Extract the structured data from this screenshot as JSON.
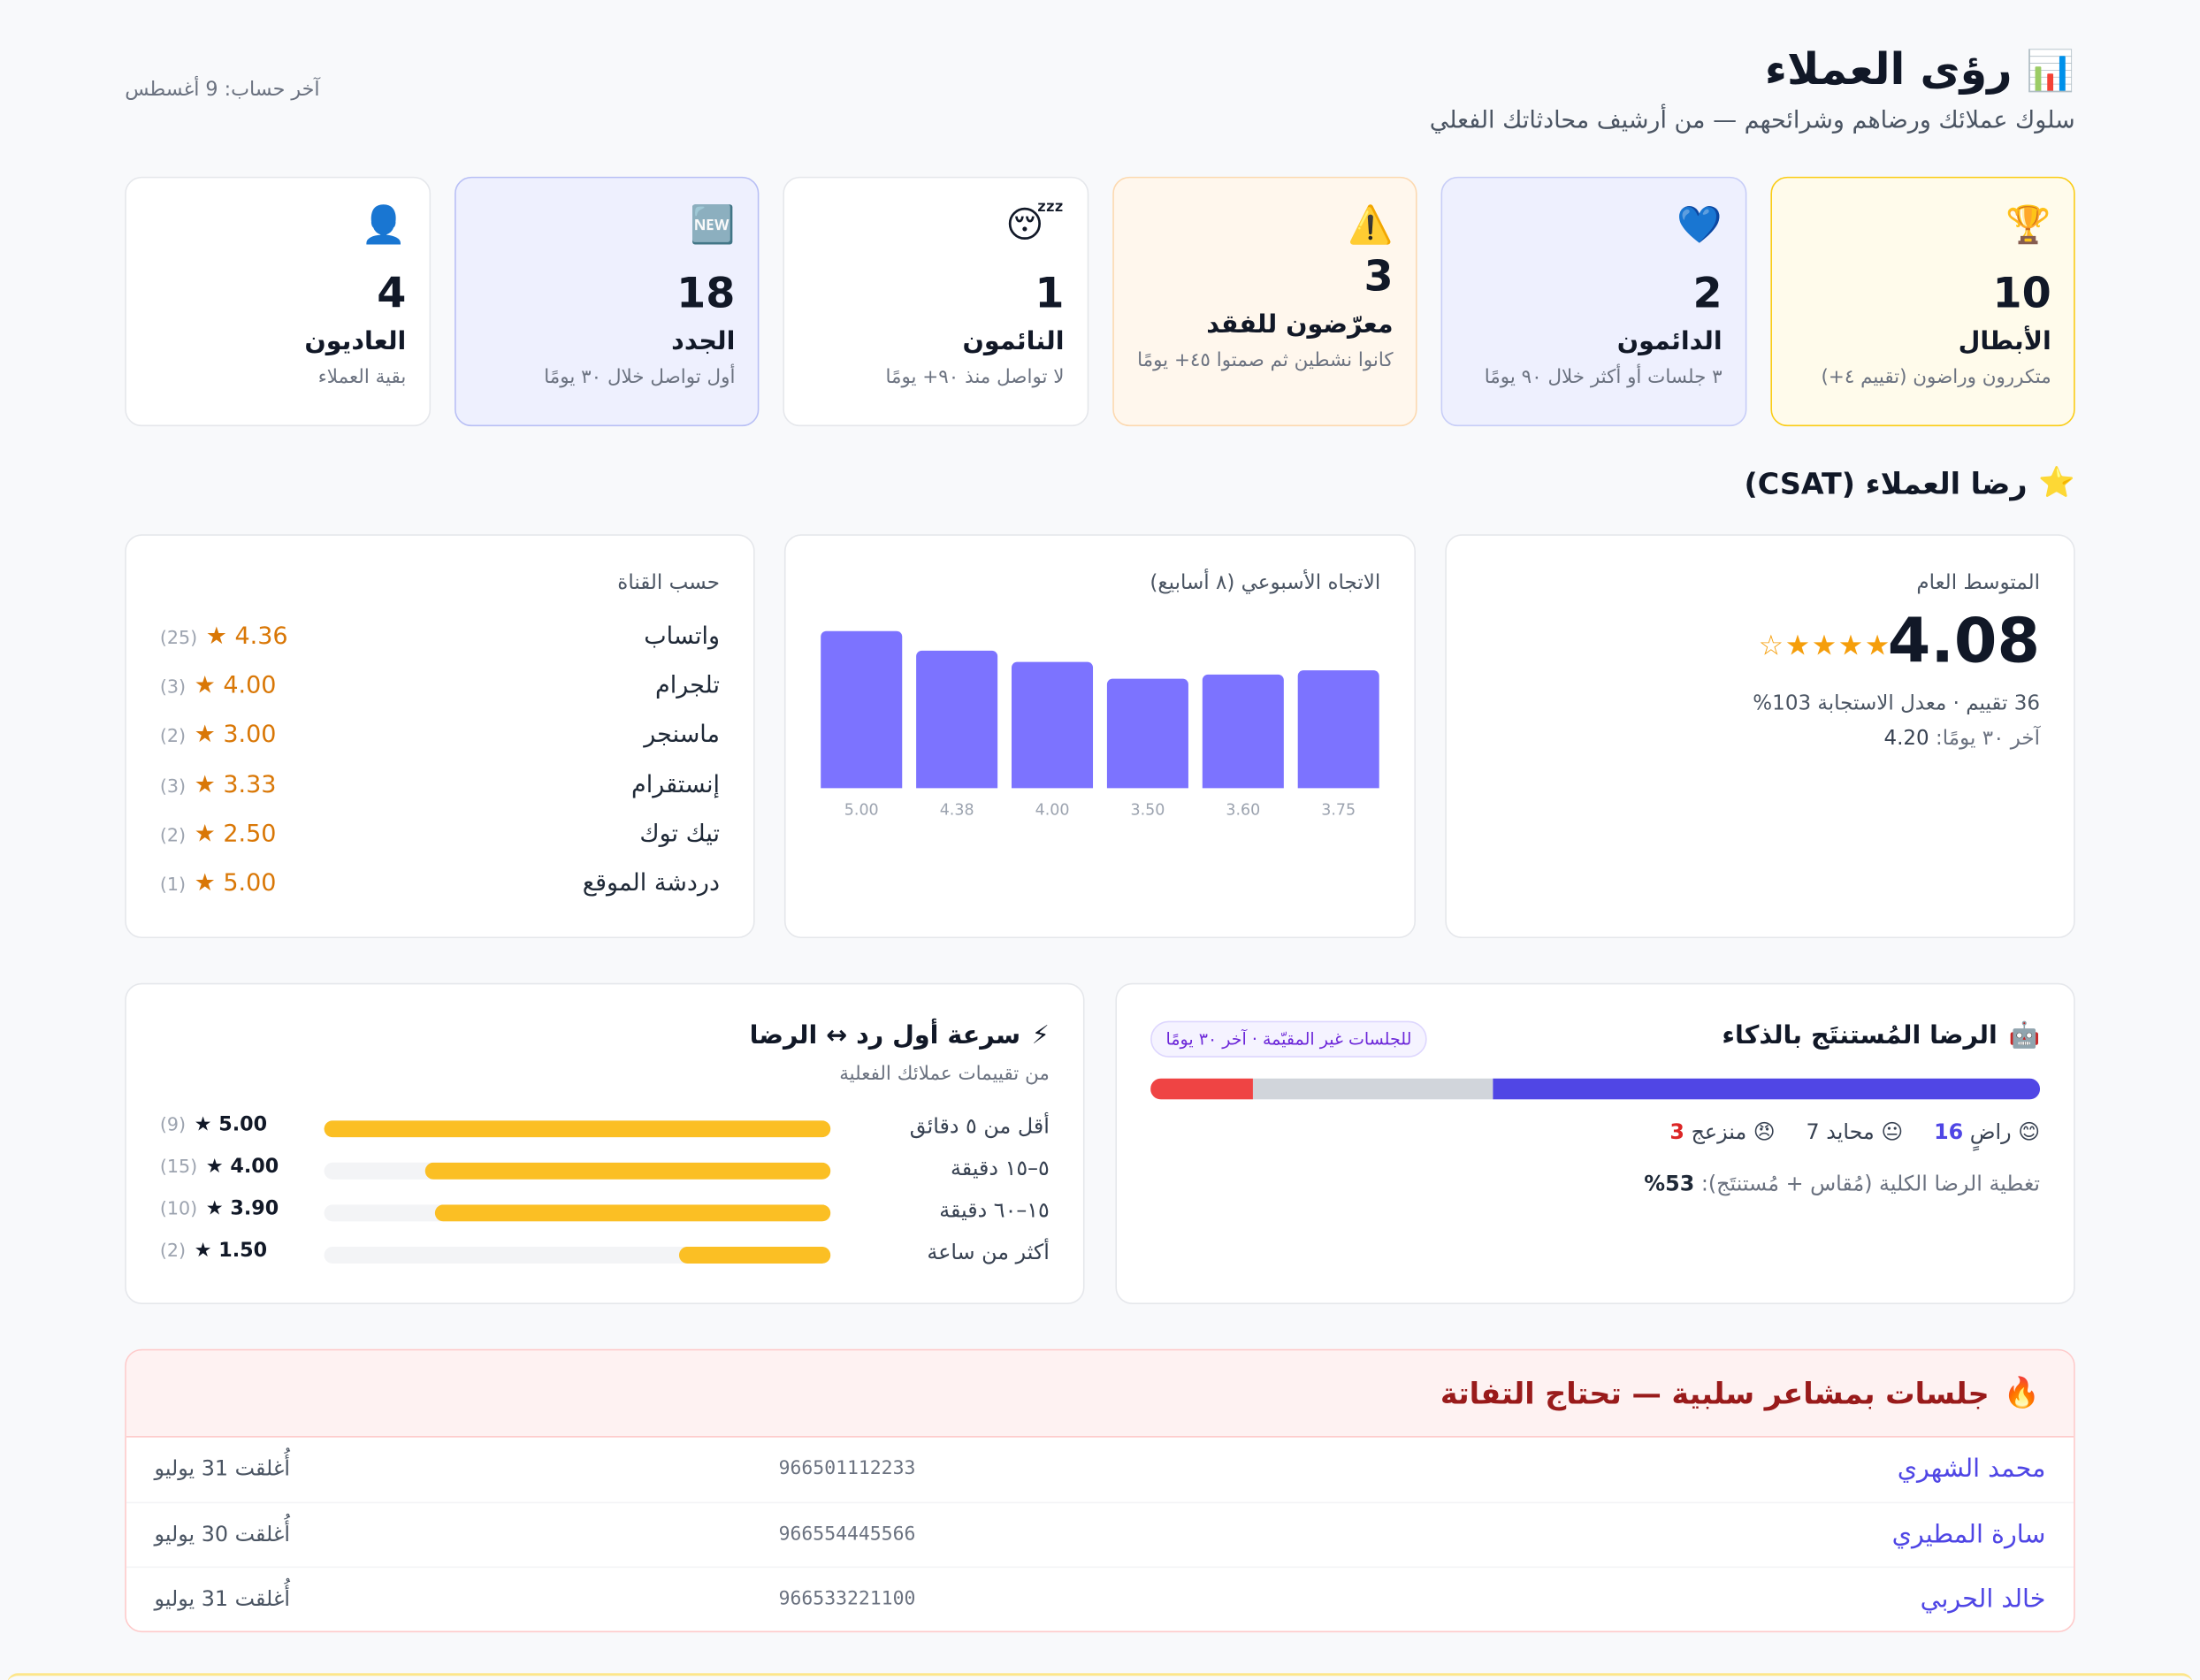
{
  "header": {
    "title": "رؤى العملاء",
    "title_icon": "chart-icon",
    "subtitle": "سلوك عملائك ورضاهم وشرائحهم — من أرشيف محادثاتك الفعلي",
    "last_calc": "آخر حساب: 9 أغسطس"
  },
  "segments": [
    {
      "icon": "🏆",
      "count": "10",
      "name": "الأبطال",
      "desc": "متكررون وراضون (تقييم ٤+)"
    },
    {
      "icon": "💙",
      "count": "2",
      "name": "الدائمون",
      "desc": "٣ جلسات أو أكثر خلال ٩٠ يومًا"
    },
    {
      "icon": "⚠️",
      "count": "3",
      "name": "معرّضون للفقد",
      "desc": "كانوا نشطين ثم صمتوا ٤٥+ يومًا"
    },
    {
      "icon": "😴",
      "count": "1",
      "name": "النائمون",
      "desc": "لا تواصل منذ ٩٠+ يومًا"
    },
    {
      "icon": "🆕",
      "count": "18",
      "name": "الجدد",
      "desc": "أول تواصل خلال ٣٠ يومًا"
    },
    {
      "icon": "👤",
      "count": "4",
      "name": "العاديون",
      "desc": "بقية العملاء"
    }
  ],
  "csat": {
    "section_title": "رضا العملاء (CSAT)",
    "section_icon": "⭐",
    "overall": {
      "label": "المتوسط العام",
      "value": "4.08",
      "stars": "★★★★☆",
      "meta": "36 تقييم · معدل الاستجابة 103%",
      "last30_label": "آخر ٣٠ يومًا:",
      "last30_value": "4.20"
    },
    "trend": {
      "label": "الاتجاه الأسبوعي (٨ أسابيع)"
    },
    "channels": {
      "label": "حسب القناة",
      "rows": [
        {
          "name": "واتساب",
          "score": "★ 4.36",
          "count": "(25)"
        },
        {
          "name": "تلجرام",
          "score": "★ 4.00",
          "count": "(3)"
        },
        {
          "name": "ماسنجر",
          "score": "★ 3.00",
          "count": "(2)"
        },
        {
          "name": "إنستقرام",
          "score": "★ 3.33",
          "count": "(3)"
        },
        {
          "name": "تيك توك",
          "score": "★ 2.50",
          "count": "(2)"
        },
        {
          "name": "دردشة الموقع",
          "score": "★ 5.00",
          "count": "(1)"
        }
      ]
    }
  },
  "chart_data": {
    "type": "bar",
    "categories": [
      "5.00",
      "4.38",
      "4.00",
      "3.50",
      "3.60",
      "3.75"
    ],
    "values": [
      5.0,
      4.38,
      4.0,
      3.5,
      3.6,
      3.75
    ],
    "title": "الاتجاه الأسبوعي (٨ أسابيع)",
    "ylim": [
      0,
      5
    ]
  },
  "ai_satisfaction": {
    "title": "الرضا المُستنتَج بالذكاء",
    "icon": "🤖",
    "pill": "للجلسات غير المقيّمة · آخر ٣٠ يومًا",
    "satisfied": {
      "icon": "😊",
      "label": "راضٍ",
      "count": "16",
      "color": "#5046e5"
    },
    "neutral": {
      "icon": "😐",
      "label": "محايد",
      "count": "7",
      "color": "#d1d5db"
    },
    "annoyed": {
      "icon": "😠",
      "label": "منزعج",
      "count": "3",
      "color": "#ef4444"
    },
    "coverage_label": "تغطية الرضا الكلية (مُقاس + مُستنتَج):",
    "coverage_value": "53%"
  },
  "speed": {
    "title": "سرعة أول رد ↔ الرضا",
    "icon": "⚡",
    "subtitle": "من تقييمات عملائك الفعلية",
    "rows": [
      {
        "name": "أقل من ٥ دقائق",
        "score": "★ 5.00",
        "count": "(9)",
        "value": 5.0
      },
      {
        "name": "٥–١٥ دقيقة",
        "score": "★ 4.00",
        "count": "(15)",
        "value": 4.0
      },
      {
        "name": "١٥–٦٠ دقيقة",
        "score": "★ 3.90",
        "count": "(10)",
        "value": 3.9
      },
      {
        "name": "أكثر من ساعة",
        "score": "★ 1.50",
        "count": "(2)",
        "value": 1.5
      }
    ]
  },
  "negative": {
    "title": "جلسات بمشاعر سلبية — تحتاج التفاتة",
    "icon": "🔥",
    "rows": [
      {
        "name": "محمد الشهري",
        "phone": "966501112233",
        "date": "أُغلقت 31 يوليو"
      },
      {
        "name": "سارة المطيري",
        "phone": "966554445566",
        "date": "أُغلقت 30 يوليو"
      },
      {
        "name": "خالد الحربي",
        "phone": "966533221100",
        "date": "أُغلقت 31 يوليو"
      }
    ]
  }
}
